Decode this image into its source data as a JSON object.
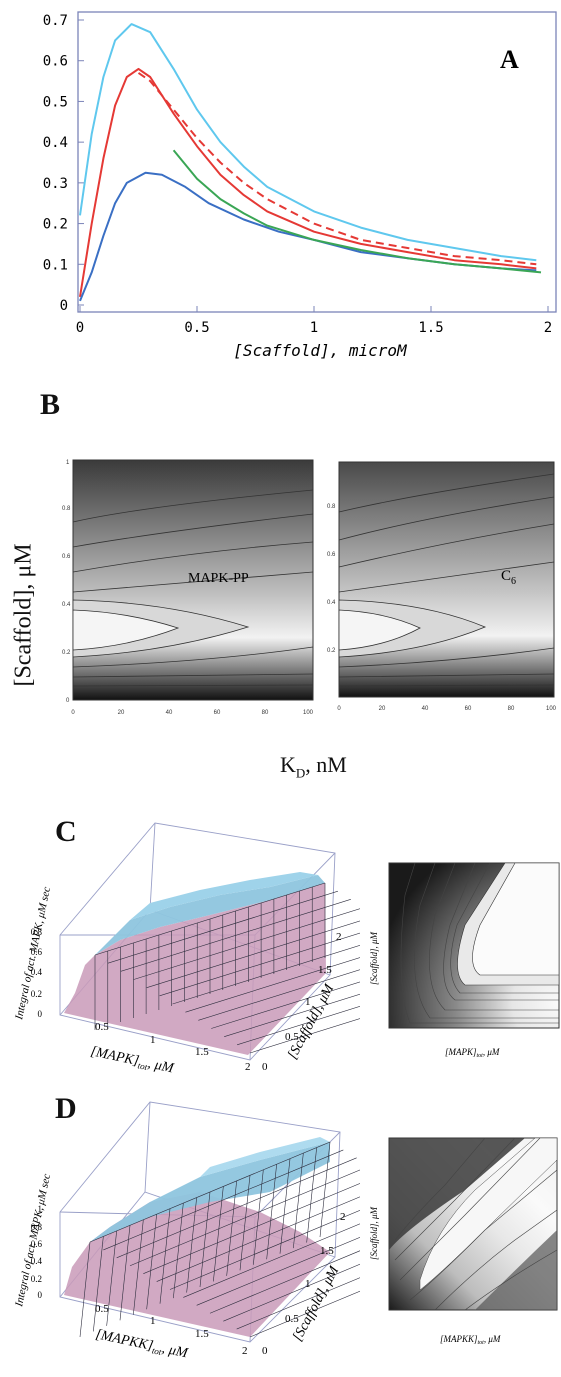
{
  "chart_data": [
    {
      "panel": "A",
      "type": "line",
      "x_label": "[Scaffold], microM",
      "x_ticks": [
        "0",
        "0.5",
        "1",
        "1.5",
        "2"
      ],
      "y_ticks": [
        "0",
        "0.1",
        "0.2",
        "0.3",
        "0.4",
        "0.5",
        "0.6",
        "0.7"
      ],
      "xlim": [
        0,
        2
      ],
      "ylim": [
        0,
        0.7
      ],
      "series": [
        {
          "color": "#5fc8ee",
          "style": "solid",
          "points": [
            [
              0,
              0.22
            ],
            [
              0.05,
              0.42
            ],
            [
              0.1,
              0.56
            ],
            [
              0.15,
              0.65
            ],
            [
              0.22,
              0.69
            ],
            [
              0.3,
              0.67
            ],
            [
              0.4,
              0.58
            ],
            [
              0.5,
              0.48
            ],
            [
              0.6,
              0.4
            ],
            [
              0.7,
              0.34
            ],
            [
              0.8,
              0.29
            ],
            [
              1.0,
              0.23
            ],
            [
              1.2,
              0.19
            ],
            [
              1.4,
              0.16
            ],
            [
              1.6,
              0.14
            ],
            [
              1.8,
              0.12
            ],
            [
              1.95,
              0.11
            ]
          ]
        },
        {
          "color": "#e53935",
          "style": "solid",
          "points": [
            [
              0,
              0.02
            ],
            [
              0.05,
              0.2
            ],
            [
              0.1,
              0.36
            ],
            [
              0.15,
              0.49
            ],
            [
              0.2,
              0.56
            ],
            [
              0.25,
              0.58
            ],
            [
              0.3,
              0.56
            ],
            [
              0.4,
              0.47
            ],
            [
              0.5,
              0.39
            ],
            [
              0.6,
              0.32
            ],
            [
              0.7,
              0.27
            ],
            [
              0.8,
              0.23
            ],
            [
              1.0,
              0.18
            ],
            [
              1.2,
              0.15
            ],
            [
              1.4,
              0.13
            ],
            [
              1.6,
              0.11
            ],
            [
              1.8,
              0.1
            ],
            [
              1.95,
              0.09
            ]
          ]
        },
        {
          "color": "#e53935",
          "style": "dashed",
          "points": [
            [
              0.25,
              0.57
            ],
            [
              0.3,
              0.55
            ],
            [
              0.4,
              0.48
            ],
            [
              0.5,
              0.41
            ],
            [
              0.6,
              0.35
            ],
            [
              0.7,
              0.3
            ],
            [
              0.8,
              0.26
            ],
            [
              1.0,
              0.2
            ],
            [
              1.2,
              0.16
            ],
            [
              1.4,
              0.14
            ],
            [
              1.6,
              0.12
            ],
            [
              1.8,
              0.11
            ],
            [
              1.95,
              0.1
            ]
          ]
        },
        {
          "color": "#3a6fc4",
          "style": "solid",
          "points": [
            [
              0,
              0.01
            ],
            [
              0.05,
              0.08
            ],
            [
              0.1,
              0.17
            ],
            [
              0.15,
              0.25
            ],
            [
              0.2,
              0.3
            ],
            [
              0.28,
              0.325
            ],
            [
              0.35,
              0.32
            ],
            [
              0.45,
              0.29
            ],
            [
              0.55,
              0.25
            ],
            [
              0.7,
              0.21
            ],
            [
              0.85,
              0.18
            ],
            [
              1.0,
              0.16
            ],
            [
              1.2,
              0.13
            ],
            [
              1.4,
              0.115
            ],
            [
              1.6,
              0.1
            ],
            [
              1.8,
              0.09
            ],
            [
              1.95,
              0.085
            ]
          ]
        },
        {
          "color": "#3aa655",
          "style": "solid",
          "points": [
            [
              0.4,
              0.38
            ],
            [
              0.5,
              0.31
            ],
            [
              0.6,
              0.26
            ],
            [
              0.7,
              0.225
            ],
            [
              0.8,
              0.195
            ],
            [
              1.0,
              0.16
            ],
            [
              1.2,
              0.135
            ],
            [
              1.4,
              0.115
            ],
            [
              1.6,
              0.1
            ],
            [
              1.8,
              0.09
            ],
            [
              1.97,
              0.08
            ]
          ]
        }
      ]
    },
    {
      "panel": "B",
      "type": "heatmap",
      "y_label": "[Scaffold], μM",
      "x_label_main": "K",
      "x_label_sub": "D",
      "x_label_unit": ", nM",
      "plots": [
        {
          "label": "MAPK-PP",
          "label_sub": "",
          "x_ticks": [
            "0",
            "20",
            "40",
            "60",
            "80",
            "100"
          ],
          "y_ticks": [
            "0",
            "0.2",
            "0.4",
            "0.6",
            "0.8",
            "1"
          ]
        },
        {
          "label": "C",
          "label_sub": "6",
          "x_ticks": [
            "0",
            "20",
            "40",
            "60",
            "80",
            "100"
          ],
          "y_ticks": [
            "0.2",
            "0.4",
            "0.6",
            "0.8"
          ]
        }
      ]
    },
    {
      "panel": "C",
      "type": "surface",
      "z_label": "Integral of act. MAPK, μM sec",
      "x_label": "[MAPK]",
      "x_label_sub": "tot",
      "x_label_unit": ", μM",
      "y_label": "[Scaffold], μM",
      "z_ticks": [
        "0",
        "0.2",
        "0.4",
        "0.6",
        "0.8"
      ],
      "x_ticks": [
        "0.5",
        "1",
        "1.5",
        "2"
      ],
      "y_ticks": [
        "0",
        "0.5",
        "1",
        "1.5",
        "2"
      ],
      "contour_x_label": "[MAPK]",
      "contour_x_sub": "tot",
      "contour_x_unit": ", μM",
      "contour_y_label": "[Scaffold], μM"
    },
    {
      "panel": "D",
      "type": "surface",
      "z_label": "Integral of act. MAPK, μM sec",
      "x_label": "[MAPKK]",
      "x_label_sub": "tot",
      "x_label_unit": ", μM",
      "y_label": "[Scaffold], μM",
      "z_ticks": [
        "0",
        "0.2",
        "0.4",
        "0.6",
        "0.8",
        "1"
      ],
      "x_ticks": [
        "0.5",
        "1",
        "1.5",
        "2"
      ],
      "y_ticks": [
        "0",
        "0.5",
        "1",
        "1.5",
        "2"
      ],
      "contour_x_label": "[MAPKK]",
      "contour_x_sub": "tot",
      "contour_x_unit": ", μM",
      "contour_y_label": "[Scaffold], μM"
    }
  ]
}
